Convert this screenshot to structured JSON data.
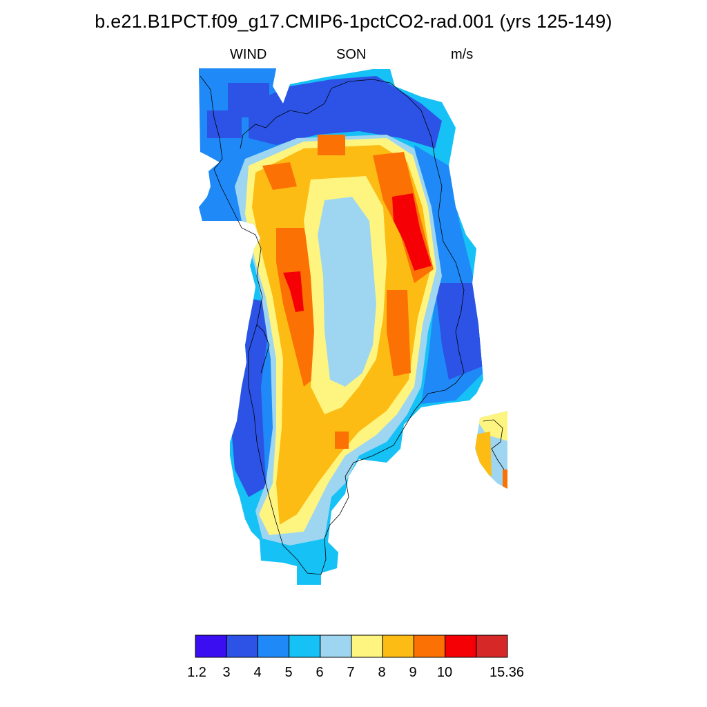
{
  "title": "b.e21.B1PCT.f09_g17.CMIP6-1pctCO2-rad.001 (yrs 125-149)",
  "subtitle_left": "WIND",
  "subtitle_center": "SON",
  "subtitle_right": "m/s",
  "colorbar": {
    "colors": [
      "#3b0ef2",
      "#2c53e5",
      "#1f8af7",
      "#16c1f6",
      "#9ed6f1",
      "#fef580",
      "#fcbc13",
      "#fc7103",
      "#f50005",
      "#d72828"
    ],
    "tick_labels": [
      "1.2",
      "3",
      "4",
      "5",
      "6",
      "7",
      "8",
      "9",
      "10",
      "15.36"
    ]
  },
  "chart_data": {
    "type": "heatmap",
    "variable": "WIND",
    "season": "SON",
    "units": "m/s",
    "levels": [
      1.2,
      3,
      4,
      5,
      6,
      7,
      8,
      9,
      10,
      15.36
    ],
    "regions": [
      {
        "class": 1,
        "level_range": [
          3,
          4
        ]
      },
      {
        "class": 2,
        "level_range": [
          4,
          5
        ]
      },
      {
        "class": 3,
        "level_range": [
          5,
          6
        ]
      },
      {
        "class": 4,
        "level_range": [
          6,
          7
        ]
      },
      {
        "class": 5,
        "level_range": [
          7,
          8
        ]
      },
      {
        "class": 6,
        "level_range": [
          8,
          9
        ]
      },
      {
        "class": 7,
        "level_range": [
          9,
          10
        ]
      },
      {
        "class": 8,
        "level_range": [
          10,
          15.36
        ]
      }
    ]
  }
}
